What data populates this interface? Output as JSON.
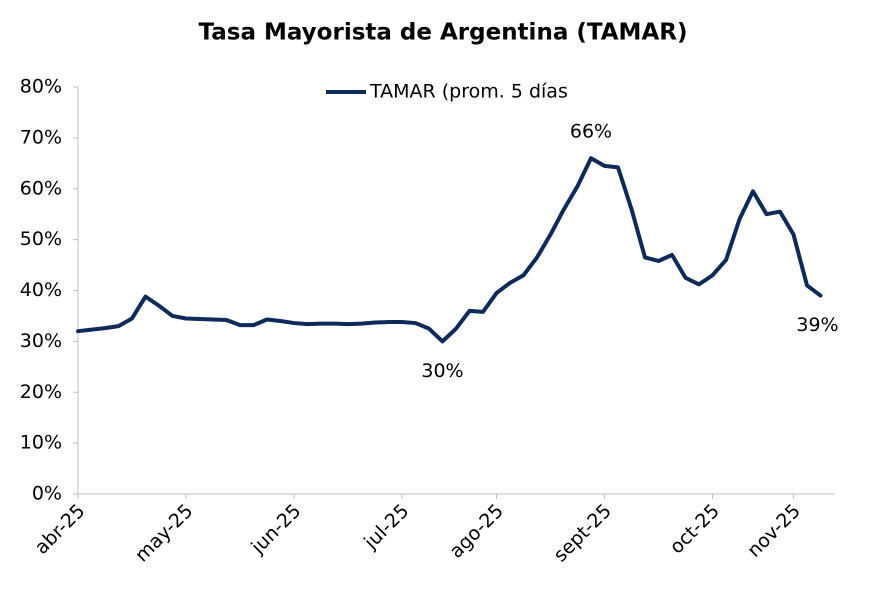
{
  "chart_data": {
    "type": "line",
    "title": "Tasa Mayorista de Argentina (TAMAR)",
    "categories": [
      "abr-25",
      null,
      null,
      null,
      null,
      null,
      null,
      null,
      "may-25",
      null,
      null,
      null,
      null,
      null,
      null,
      null,
      "jun-25",
      null,
      null,
      null,
      null,
      null,
      null,
      null,
      "jul-25",
      null,
      null,
      null,
      null,
      null,
      null,
      "ago-25",
      null,
      null,
      null,
      null,
      null,
      null,
      null,
      "sept-25",
      null,
      null,
      null,
      null,
      null,
      null,
      null,
      "oct-25",
      null,
      null,
      null,
      null,
      null,
      "nov-25",
      null,
      null
    ],
    "series": [
      {
        "name": "TAMAR (prom. 5 días",
        "color": "#0d2a5c",
        "values": [
          32,
          32.3,
          32.6,
          33,
          34.5,
          38.8,
          37,
          35,
          34.5,
          34.4,
          34.3,
          34.2,
          33.2,
          33.2,
          34.3,
          34,
          33.6,
          33.4,
          33.5,
          33.5,
          33.4,
          33.5,
          33.7,
          33.8,
          33.8,
          33.6,
          32.5,
          30,
          32.5,
          36,
          35.8,
          39.5,
          41.5,
          43,
          46.5,
          51,
          56,
          60.5,
          66,
          64.5,
          64.2,
          56,
          46.5,
          45.8,
          47,
          42.5,
          41.2,
          43,
          46,
          54,
          59.5,
          55,
          55.5,
          51,
          41,
          39
        ],
        "value_labels": [
          null,
          null,
          null,
          null,
          null,
          null,
          null,
          null,
          null,
          null,
          null,
          null,
          null,
          null,
          null,
          null,
          null,
          null,
          null,
          null,
          null,
          null,
          null,
          null,
          null,
          null,
          null,
          "30%",
          null,
          null,
          null,
          null,
          null,
          null,
          null,
          null,
          null,
          null,
          "66%",
          null,
          null,
          null,
          null,
          null,
          null,
          null,
          null,
          null,
          null,
          null,
          null,
          null,
          null,
          null,
          null,
          "39%"
        ]
      }
    ],
    "ylim": [
      0,
      80
    ],
    "yticks": [
      {
        "value": 0,
        "label": "0%"
      },
      {
        "value": 10,
        "label": "10%"
      },
      {
        "value": 20,
        "label": "20%"
      },
      {
        "value": 30,
        "label": "30%"
      },
      {
        "value": 40,
        "label": "40%"
      },
      {
        "value": 50,
        "label": "50%"
      },
      {
        "value": 60,
        "label": "60%"
      },
      {
        "value": 70,
        "label": "70%"
      },
      {
        "value": 80,
        "label": "80%"
      }
    ],
    "grid": false,
    "legend": "top"
  }
}
